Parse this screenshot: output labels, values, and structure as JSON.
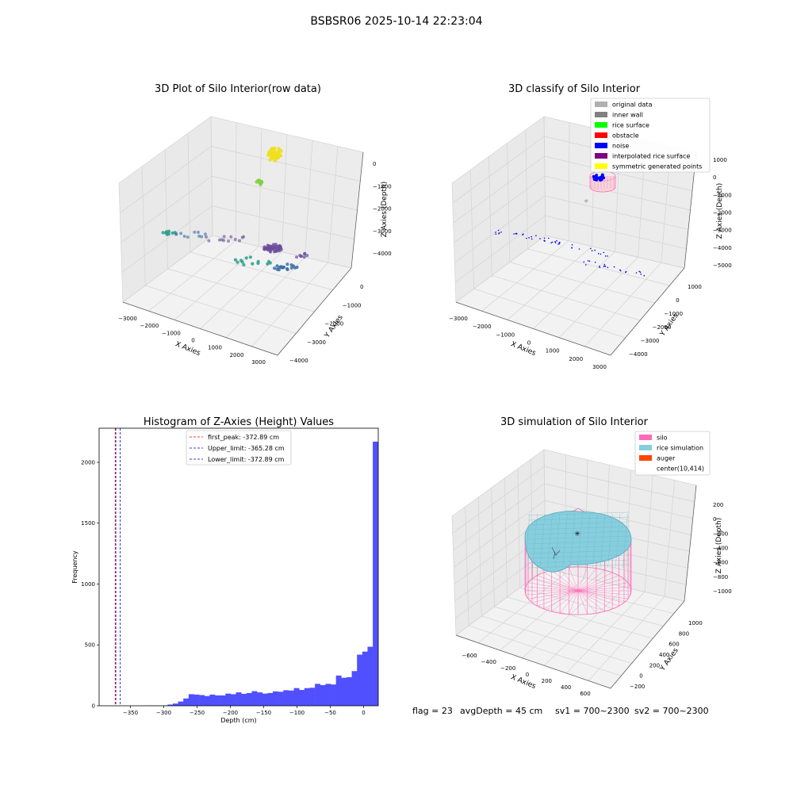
{
  "figure_title": "BSBSR06 2025-10-14 22:23:04",
  "footer": {
    "flag": "flag = 23",
    "avg": "avgDepth = 45 cm",
    "sv1": "sv1 = 700~2300",
    "sv2": "sv2 = 700~2300"
  },
  "colors": {
    "hist_bar": "#5050ff",
    "first_peak": "#ff0000",
    "limits": "#0000cc",
    "silo": "#ff69b4",
    "rice": "#87cedf",
    "auger": "#ff4500",
    "noise": "#0000ff",
    "rice_surface": "#00ff00",
    "yellow": "#ffff00",
    "purple": "#800080",
    "grey": "#b0b0b0",
    "dark_grey": "#808080",
    "obstacle": "#ff0000"
  },
  "chart_data": [
    {
      "type": "scatter",
      "title": "3D Plot of Silo Interior(row data)",
      "xlabel": "X Axies",
      "ylabel": "Y Axies",
      "zlabel": "Z Axies (Depth)",
      "x_ticks": [
        "−3000",
        "−2000",
        "−1000",
        "0",
        "1000",
        "2000",
        "3000"
      ],
      "y_ticks": [
        "0",
        "−1000",
        "−2000",
        "−3000",
        "−4000"
      ],
      "z_ticks": [
        "0",
        "−1000",
        "−2000",
        "−3000",
        "−4000"
      ],
      "series": [
        {
          "color": "#f0e020",
          "points": [
            [
              1200,
              -300,
              0
            ],
            [
              1300,
              -400,
              -50
            ],
            [
              1150,
              -350,
              -100
            ]
          ]
        },
        {
          "color": "#80d040",
          "points": [
            [
              700,
              -1500,
              -900
            ]
          ]
        },
        {
          "color": "#2a9d8f",
          "points": [
            [
              -3000,
              -2500,
              -3000
            ],
            [
              -2800,
              -2300,
              -3100
            ]
          ]
        },
        {
          "color": "#6b4c9a",
          "points": [
            [
              500,
              -3200,
              -3800
            ],
            [
              900,
              -3400,
              -3800
            ]
          ]
        },
        {
          "color": "#3b6ea5",
          "points": [
            [
              1800,
              -3800,
              -4100
            ],
            [
              2200,
              -3900,
              -4000
            ]
          ]
        }
      ]
    },
    {
      "type": "scatter",
      "title": "3D classify of Silo Interior",
      "xlabel": "X Axies",
      "ylabel": "Y Axies",
      "zlabel": "Z Axies (Depth)",
      "x_ticks": [
        "−3000",
        "−2000",
        "−1000",
        "0",
        "1000",
        "2000",
        "3000"
      ],
      "y_ticks": [
        "1000",
        "0",
        "−1000",
        "−2000",
        "−3000",
        "−4000"
      ],
      "z_ticks": [
        "1000",
        "0",
        "−1000",
        "−2000",
        "−3000",
        "−4000",
        "−5000"
      ],
      "legend": [
        {
          "label": "original data",
          "color": "#b0b0b0"
        },
        {
          "label": "inner wall",
          "color": "#808080"
        },
        {
          "label": "rice surface",
          "color": "#00ff00"
        },
        {
          "label": "obstacle",
          "color": "#ff0000"
        },
        {
          "label": "noise",
          "color": "#0000ff"
        },
        {
          "label": "interpolated rice surface",
          "color": "#800080"
        },
        {
          "label": "symmetric generated points",
          "color": "#ffff00"
        }
      ]
    },
    {
      "type": "bar",
      "title": "Histogram of Z-Axies (Height) Values",
      "xlabel": "Depth (cm)",
      "ylabel": "Frequency",
      "xlim": [
        -397,
        22
      ],
      "ylim": [
        0,
        2280
      ],
      "x_ticks": [
        -350,
        -300,
        -250,
        -200,
        -150,
        -100,
        -50,
        0
      ],
      "y_ticks": [
        0,
        500,
        1000,
        1500,
        2000
      ],
      "bin_start": -397,
      "bin_width": 7.9,
      "values": [
        0,
        0,
        0,
        0,
        0,
        0,
        0,
        0,
        1,
        2,
        2,
        2,
        3,
        10,
        18,
        35,
        60,
        95,
        92,
        88,
        80,
        92,
        85,
        85,
        100,
        95,
        110,
        98,
        105,
        120,
        110,
        100,
        105,
        118,
        115,
        128,
        125,
        145,
        130,
        145,
        148,
        180,
        170,
        180,
        175,
        248,
        230,
        235,
        285,
        420,
        445,
        485,
        2170
      ],
      "lines": [
        {
          "label": "first_peak: -372.89 cm",
          "x": -372.89,
          "color": "#ff0000"
        },
        {
          "label": "Upper_limit: -365.28 cm",
          "x": -365.28,
          "color": "#0000cc"
        },
        {
          "label": "Lower_limit: -372.89 cm",
          "x": -372.89,
          "color": "#0000cc"
        }
      ]
    },
    {
      "type": "surface",
      "title": "3D simulation of Silo Interior",
      "xlabel": "X Axies",
      "ylabel": "Y Axies",
      "zlabel": "Z Axies (Depth)",
      "x_ticks": [
        "−600",
        "−400",
        "−200",
        "0",
        "200",
        "400",
        "600"
      ],
      "y_ticks": [
        "1000",
        "800",
        "600",
        "400",
        "200",
        "0",
        "−200"
      ],
      "z_ticks": [
        "200",
        "0",
        "−200",
        "−400",
        "−600",
        "−800",
        "−1000"
      ],
      "legend": [
        {
          "label": "silo",
          "color": "#ff69b4"
        },
        {
          "label": "rice simulation",
          "color": "#87cedf"
        },
        {
          "label": "auger",
          "color": "#ff4500"
        },
        {
          "label": "center(10,414)",
          "color": ""
        }
      ]
    }
  ]
}
